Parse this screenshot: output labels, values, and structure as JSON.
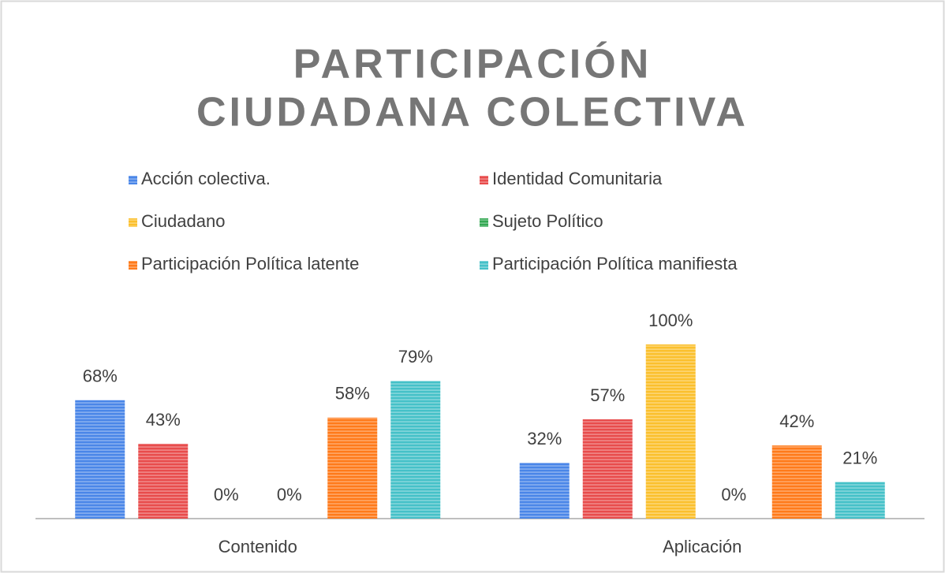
{
  "chart_data": {
    "type": "bar",
    "title": [
      "PARTICIPACIÓN",
      "CIUDADANA COLECTIVA"
    ],
    "categories": [
      "Contenido",
      "Aplicación"
    ],
    "series": [
      {
        "name": "Acción colectiva.",
        "color": "#4a86e8",
        "values": [
          68,
          32
        ],
        "value_labels": [
          "68%",
          "32%"
        ]
      },
      {
        "name": "Identidad Comunitaria",
        "color": "#e84c4c",
        "values": [
          43,
          57
        ],
        "value_labels": [
          "43%",
          "57%"
        ]
      },
      {
        "name": "Ciudadano",
        "color": "#fbc02d",
        "values": [
          0,
          100
        ],
        "value_labels": [
          "0%",
          "100%"
        ]
      },
      {
        "name": "Sujeto Político",
        "color": "#34a853",
        "values": [
          0,
          0
        ],
        "value_labels": [
          "0%",
          "0%"
        ]
      },
      {
        "name": "Participación Política latente",
        "color": "#ff7a1a",
        "values": [
          58,
          42
        ],
        "value_labels": [
          "58%",
          "42%"
        ]
      },
      {
        "name": "Participación Política manifiesta",
        "color": "#45c1c8",
        "values": [
          79,
          21
        ],
        "value_labels": [
          "79%",
          "21%"
        ]
      }
    ],
    "legend": "top"
  }
}
